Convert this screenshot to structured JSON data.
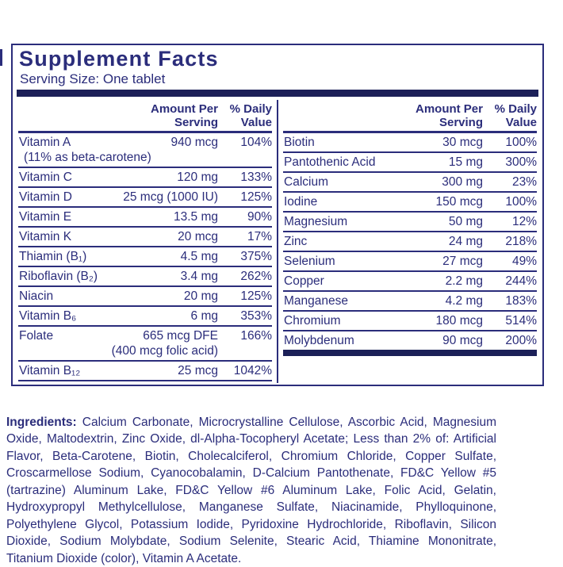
{
  "colors": {
    "navy_text": "#2b2d7b",
    "bar_navy": "#1c2058",
    "background": "#ffffff"
  },
  "panel": {
    "title": "Supplement Facts",
    "serving_size": "Serving Size: One tablet",
    "col_header_amount": "Amount Per\nServing",
    "col_header_dv": "% Daily\nValue",
    "left_rows": [
      {
        "name": "Vitamin A",
        "note": "(11% as beta-carotene)",
        "amount": "940 mcg",
        "dv": "104%"
      },
      {
        "name": "Vitamin C",
        "amount": "120 mg",
        "dv": "133%"
      },
      {
        "name": "Vitamin D",
        "amount": "25 mcg (1000 IU)",
        "dv": "125%"
      },
      {
        "name": "Vitamin E",
        "amount": "13.5 mg",
        "dv": "90%"
      },
      {
        "name": "Vitamin K",
        "amount": "20 mcg",
        "dv": "17%"
      },
      {
        "name": "Thiamin (B₁)",
        "amount": "4.5 mg",
        "dv": "375%"
      },
      {
        "name": "Riboflavin (B₂)",
        "amount": "3.4 mg",
        "dv": "262%"
      },
      {
        "name": "Niacin",
        "amount": "20 mg",
        "dv": "125%"
      },
      {
        "name": "Vitamin B₆",
        "amount": "6 mg",
        "dv": "353%"
      },
      {
        "name": "Folate",
        "amount": "665 mcg DFE",
        "amount_note": "(400 mcg folic acid)",
        "dv": "166%"
      },
      {
        "name": "Vitamin B₁₂",
        "amount": "25 mcg",
        "dv": "1042%"
      }
    ],
    "right_rows": [
      {
        "name": "Biotin",
        "amount": "30 mcg",
        "dv": "100%"
      },
      {
        "name": "Pantothenic Acid",
        "amount": "15 mg",
        "dv": "300%"
      },
      {
        "name": "Calcium",
        "amount": "300 mg",
        "dv": "23%"
      },
      {
        "name": "Iodine",
        "amount": "150 mcg",
        "dv": "100%"
      },
      {
        "name": "Magnesium",
        "amount": "50 mg",
        "dv": "12%"
      },
      {
        "name": "Zinc",
        "amount": "24 mg",
        "dv": "218%"
      },
      {
        "name": "Selenium",
        "amount": "27 mcg",
        "dv": "49%"
      },
      {
        "name": "Copper",
        "amount": "2.2 mg",
        "dv": "244%"
      },
      {
        "name": "Manganese",
        "amount": "4.2 mg",
        "dv": "183%"
      },
      {
        "name": "Chromium",
        "amount": "180 mcg",
        "dv": "514%"
      },
      {
        "name": "Molybdenum",
        "amount": "90 mcg",
        "dv": "200%"
      }
    ]
  },
  "ingredients": {
    "label": "Ingredients:",
    "text": " Calcium Carbonate, Microcrystalline Cellulose, Ascorbic Acid, Magnesium Oxide, Maltodextrin, Zinc Oxide, dl-Alpha-Tocopheryl Acetate; Less than 2% of: Artificial Flavor, Beta-Carotene, Biotin, Cholecalciferol, Chromium Chloride, Copper Sulfate, Croscarmellose Sodium, Cyanocobalamin, D-Calcium Pantothenate, FD&C Yellow #5 (tartrazine) Aluminum Lake, FD&C Yellow #6 Aluminum Lake, Folic Acid, Gelatin, Hydroxypropyl Methylcellulose, Manganese Sulfate, Niacinamide, Phylloquinone, Polyethylene Glycol, Potassium Iodide, Pyridoxine Hydrochloride, Riboflavin, Silicon Dioxide, Sodium Molybdate, Sodium Selenite, Stearic Acid, Thiamine Mononitrate, Titanium Dioxide (color), Vitamin A Acetate."
  }
}
